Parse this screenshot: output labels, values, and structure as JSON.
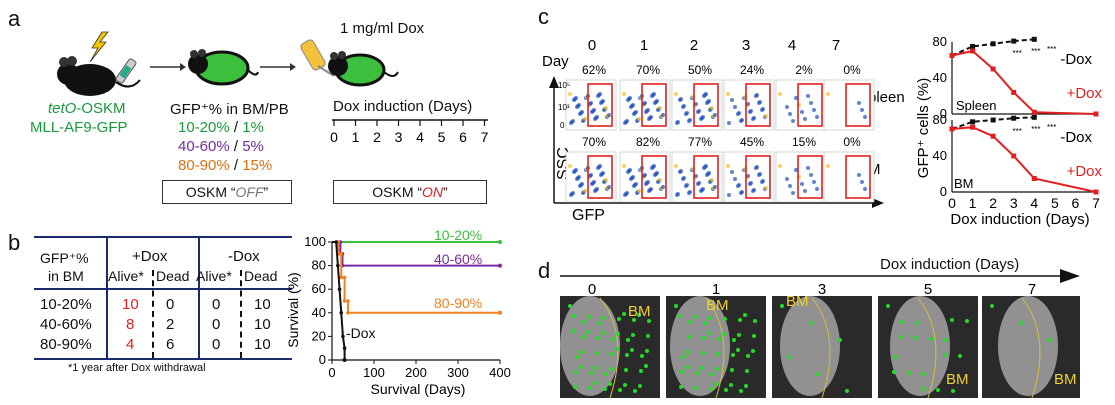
{
  "panel_a": {
    "label": "a",
    "mouse_line1_italic": "tetO",
    "mouse_line1_rest": "-OSKM",
    "mouse_line2": "MLL-AF9-GFP",
    "gfp_header": "GFP⁺% in BM/PB",
    "groups": [
      {
        "bm": "10-20%",
        "pb": "1%",
        "color": "#1a9a3a"
      },
      {
        "bm": "40-60%",
        "pb": "5%",
        "color": "#7a2aa0"
      },
      {
        "bm": "80-90%",
        "pb": "15%",
        "color": "#e07010"
      }
    ],
    "dox_label": "1 mg/ml Dox",
    "induction_title": "Dox induction (Days)",
    "days": [
      "0",
      "1",
      "2",
      "3",
      "4",
      "5",
      "6",
      "7"
    ],
    "off_prefix": "OSKM “",
    "off_word": "OFF",
    "off_suffix": "”",
    "on_prefix": "OSKM “",
    "on_word": "ON",
    "on_suffix": "”"
  },
  "panel_b": {
    "label": "b",
    "col_gfp_1": "GFP⁺%",
    "col_gfp_2": "in BM",
    "plus_dox": "+Dox",
    "minus_dox": "-Dox",
    "alive": "Alive*",
    "dead": "Dead",
    "rows": [
      {
        "group": "10-20%",
        "plus_alive": "10",
        "plus_dead": "0",
        "minus_alive": "0",
        "minus_dead": "10"
      },
      {
        "group": "40-60%",
        "plus_alive": "8",
        "plus_dead": "2",
        "minus_alive": "0",
        "minus_dead": "10"
      },
      {
        "group": "80-90%",
        "plus_alive": "4",
        "plus_dead": "6",
        "minus_alive": "0",
        "minus_dead": "10"
      }
    ],
    "footnote": "*1 year after Dox withdrawal"
  },
  "survival_chart": {
    "ylabel": "Survival (%)",
    "xlabel": "Survival (Days)",
    "xticks": [
      "0",
      "100",
      "200",
      "300",
      "400"
    ],
    "yticks": [
      "0",
      "20",
      "40",
      "60",
      "80",
      "100"
    ],
    "series_labels": [
      "10-20%",
      "40-60%",
      "80-90%",
      "-Dox"
    ]
  },
  "chart_data": [
    {
      "type": "line",
      "xlabel": "Survival (Days)",
      "ylabel": "Survival (%)",
      "xlim": [
        0,
        400
      ],
      "ylim": [
        0,
        100
      ],
      "series": [
        {
          "name": "10-20%",
          "color": "#3cbf3c",
          "x": [
            0,
            400
          ],
          "y": [
            100,
            100
          ]
        },
        {
          "name": "40-60%",
          "color": "#7a2aa0",
          "x": [
            0,
            20,
            20,
            25,
            25,
            400
          ],
          "y": [
            100,
            100,
            90,
            90,
            80,
            80
          ]
        },
        {
          "name": "80-90%",
          "color": "#f08020",
          "x": [
            0,
            15,
            15,
            22,
            22,
            30,
            30,
            38,
            38,
            400
          ],
          "y": [
            100,
            100,
            90,
            90,
            70,
            70,
            50,
            50,
            40,
            40
          ]
        },
        {
          "name": "-Dox",
          "color": "#111111",
          "x": [
            0,
            10,
            14,
            18,
            22,
            26,
            30,
            30
          ],
          "y": [
            100,
            100,
            80,
            60,
            40,
            20,
            10,
            0
          ]
        }
      ]
    },
    {
      "type": "line",
      "xlabel": "Dox induction (Days)",
      "ylabel": "GFP⁺ cells (%)",
      "xlim": [
        0,
        7
      ],
      "ylim": [
        0,
        80
      ],
      "panels": [
        {
          "tissue": "Spleen",
          "series": [
            {
              "name": "-Dox",
              "color": "#111111",
              "x": [
                0,
                1,
                2,
                3,
                4
              ],
              "y": [
                65,
                75,
                78,
                81,
                83
              ]
            },
            {
              "name": "+Dox",
              "color": "#e02020",
              "x": [
                0,
                1,
                2,
                3,
                4,
                7
              ],
              "y": [
                65,
                70,
                50,
                24,
                2,
                0
              ]
            }
          ]
        },
        {
          "tissue": "BM",
          "series": [
            {
              "name": "-Dox",
              "color": "#111111",
              "x": [
                0,
                1,
                2,
                3,
                4
              ],
              "y": [
                70,
                78,
                80,
                82,
                83
              ]
            },
            {
              "name": "+Dox",
              "color": "#e02020",
              "x": [
                0,
                1,
                2,
                3,
                4,
                7
              ],
              "y": [
                70,
                72,
                62,
                40,
                15,
                0
              ]
            }
          ]
        }
      ]
    }
  ],
  "panel_c": {
    "label": "c",
    "day_label": "Day",
    "days": [
      "0",
      "1",
      "2",
      "3",
      "4",
      "7"
    ],
    "spleen_pct": [
      "62%",
      "70%",
      "50%",
      "24%",
      "2%",
      "0%"
    ],
    "bm_pct": [
      "70%",
      "82%",
      "77%",
      "45%",
      "15%",
      "0%"
    ],
    "row_spleen": "Spleen",
    "row_bm": "BM",
    "yaxis": "SSC",
    "xaxis": "GFP",
    "facs_ticks": [
      "10³",
      "10⁵",
      "0",
      "10³",
      "10⁵"
    ],
    "line_yticks": [
      "0",
      "40",
      "80"
    ],
    "line_xticks": [
      "0",
      "1",
      "2",
      "3",
      "4",
      "5",
      "6",
      "7"
    ],
    "line_ylabel": "GFP⁺ cells (%)",
    "line_xlabel": "Dox induction (Days)",
    "minus_dox": "-Dox",
    "plus_dox": "+Dox",
    "inset_spleen": "Spleen",
    "inset_bm": "BM",
    "signif": "***"
  },
  "panel_d": {
    "label": "d",
    "title": "Dox induction (Days)",
    "days": [
      "0",
      "1",
      "3",
      "5",
      "7"
    ],
    "bm": "BM"
  },
  "colors": {
    "green": "#1a9a3a",
    "purple": "#7a2aa0",
    "orange": "#e07010",
    "red": "#e02020",
    "navy": "#1c2a6e"
  }
}
